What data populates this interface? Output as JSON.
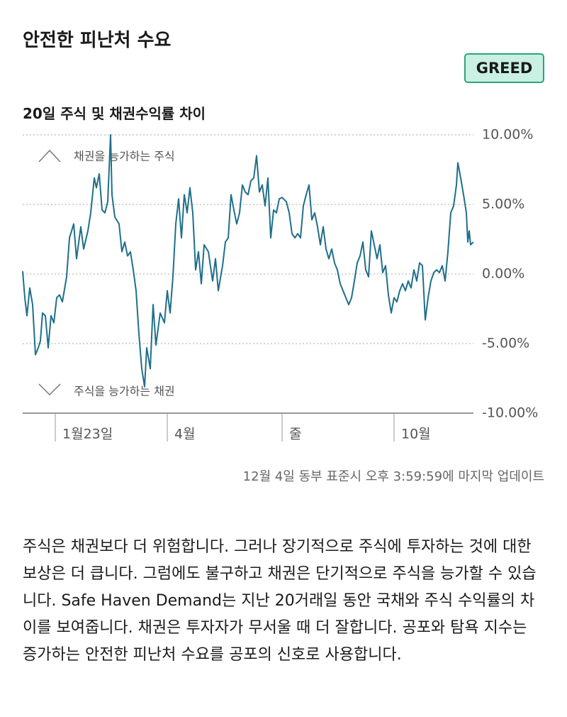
{
  "header": {
    "title": "안전한 피난처 수요",
    "badge": "GREED"
  },
  "chart_data": {
    "type": "line",
    "title": "20일 주식 및 채권수익률 차이",
    "annotations": [
      "채권을 능가하는 주식",
      "주식을 능가하는 채권"
    ],
    "x": [
      0,
      1.2,
      2.4,
      4,
      5.6,
      7.2,
      8.8,
      10,
      11.2,
      12.8,
      14.4,
      16,
      17.6,
      19.2,
      20.8,
      22.4,
      24.8,
      26.4,
      28.8,
      30.4,
      32.8,
      34.4,
      36.8,
      38.4,
      40.4,
      41.6,
      43.2,
      44.8,
      46.4,
      48,
      49.6,
      50.4,
      52,
      54.4,
      56,
      57.6,
      59.2,
      60.8,
      62.4,
      64,
      65.6,
      67.2,
      68.8,
      70,
      72,
      73.6,
      75.2,
      77.6,
      80,
      81.6,
      83.2,
      84.8,
      86.4,
      88,
      89.6,
      91.2,
      92.8,
      94.4,
      96,
      97.6,
      99.2,
      100.8,
      102.4,
      104.8,
      107.2,
      108.8,
      110.4,
      112.8,
      114.4,
      116,
      117.6,
      119.2,
      120.8,
      122.4,
      124,
      125.6,
      127.2,
      128.8,
      130.4,
      132,
      133.6,
      135.2,
      136.8,
      138.4,
      140,
      141.6,
      143.2,
      144.8,
      146.4,
      148.8,
      150.4,
      152,
      153.6,
      155.2,
      156.8,
      158.4,
      160,
      161.6,
      163.2,
      164.8,
      166.4,
      168,
      169.6,
      171.2,
      172.8,
      174.4,
      176,
      177.6,
      179.2,
      180.8,
      182.4,
      184,
      185.6,
      187.2,
      188.8,
      190.4,
      192,
      193.6,
      195.2,
      196.8,
      198.4,
      200,
      201.6,
      203.2,
      204.8,
      206.4,
      208,
      209.6,
      211.2,
      212.8,
      214.4,
      216,
      217.6,
      219.2,
      220.8,
      222.4,
      224,
      225.6,
      227.2,
      228.8,
      230.4,
      232,
      233.6,
      235.2,
      236.8,
      238.4,
      240,
      241.6,
      243.2,
      244.8,
      245.6,
      247.2,
      248.8,
      250.4,
      251.2,
      252,
      252.8,
      254.4
    ],
    "series": [
      {
        "color": "#1f6f8b",
        "values": [
          0.2,
          -1.7,
          -3.0,
          -1.0,
          -2.2,
          -5.8,
          -5.3,
          -4.8,
          -2.8,
          -3.0,
          -5.3,
          -3.0,
          -3.5,
          -1.7,
          -1.5,
          -2.0,
          -0.2,
          2.6,
          3.6,
          1.1,
          3.4,
          1.8,
          3.1,
          4.4,
          6.9,
          6.2,
          7.2,
          4.6,
          4.4,
          5.2,
          10.0,
          5.7,
          4.1,
          3.6,
          1.6,
          2.3,
          1.3,
          1.6,
          0.3,
          -1.2,
          -4.3,
          -6.8,
          -8.1,
          -5.3,
          -6.8,
          -2.2,
          -5.1,
          -2.8,
          -3.5,
          -1.2,
          -2.8,
          -0.2,
          3.6,
          5.4,
          2.6,
          5.7,
          4.4,
          6.2,
          4.4,
          0.3,
          1.6,
          -0.7,
          2.1,
          1.6,
          -0.5,
          1.1,
          -1.2,
          0.6,
          2.3,
          2.6,
          5.7,
          4.6,
          3.6,
          4.4,
          6.4,
          5.9,
          5.7,
          6.7,
          6.9,
          8.5,
          5.9,
          6.4,
          4.9,
          6.9,
          2.6,
          4.6,
          4.4,
          5.4,
          5.5,
          5.2,
          4.4,
          2.9,
          2.6,
          2.9,
          2.6,
          4.9,
          5.7,
          6.4,
          3.9,
          4.4,
          3.4,
          2.1,
          3.4,
          1.8,
          1.1,
          1.8,
          0.8,
          0.3,
          -0.7,
          -1.2,
          -1.7,
          -2.2,
          -1.7,
          -0.5,
          0.8,
          1.3,
          2.3,
          0.3,
          -0.2,
          3.1,
          2.1,
          1.1,
          2.1,
          0.1,
          0.6,
          -1.5,
          -2.8,
          -1.7,
          -2.0,
          -1.2,
          -0.7,
          -1.2,
          -0.5,
          -1.0,
          0.3,
          -0.5,
          0.8,
          0.6,
          -3.3,
          -1.7,
          -0.5,
          0.1,
          0.3,
          0.1,
          0.6,
          -0.5,
          1.6,
          4.4,
          4.9,
          6.4,
          8.0,
          6.9,
          5.7,
          4.4,
          2.3,
          3.1,
          2.1,
          2.3
        ]
      }
    ],
    "xlim": [
      0,
      254.4
    ],
    "xticks": [
      {
        "value": 18.4,
        "label": "1월23일"
      },
      {
        "value": 81.6,
        "label": "4월"
      },
      {
        "value": 146.4,
        "label": "줄"
      },
      {
        "value": 209.6,
        "label": "10월"
      }
    ],
    "ylim": [
      -10,
      10
    ],
    "yticks": [
      {
        "value": 10,
        "label": "10.00%"
      },
      {
        "value": 5,
        "label": "5.00%"
      },
      {
        "value": 0,
        "label": "0.00%"
      },
      {
        "value": -5,
        "label": "-5.00%"
      },
      {
        "value": -10,
        "label": "-10.00%"
      }
    ],
    "y_axis_side": "right",
    "grid": true
  },
  "footer": {
    "updated": "12월 4일 동부 표준시 오후 3:59:59에 마지막 업데이트",
    "description": "주식은 채권보다 더 위험합니다. 그러나 장기적으로 주식에 투자하는 것에 대한 보상은 더 큽니다. 그럼에도 불구하고 채권은 단기적으로 주식을 능가할 수 있습니다. Safe Haven Demand는 지난 20거래일 동안 국채와 주식 수익률의 차이를 보여줍니다. 채권은 투자자가 무서울 때 더 잘합니다. 공포와 탐욕 지수는 증가하는 안전한 피난처 수요를 공포의 신호로 사용합니다."
  }
}
